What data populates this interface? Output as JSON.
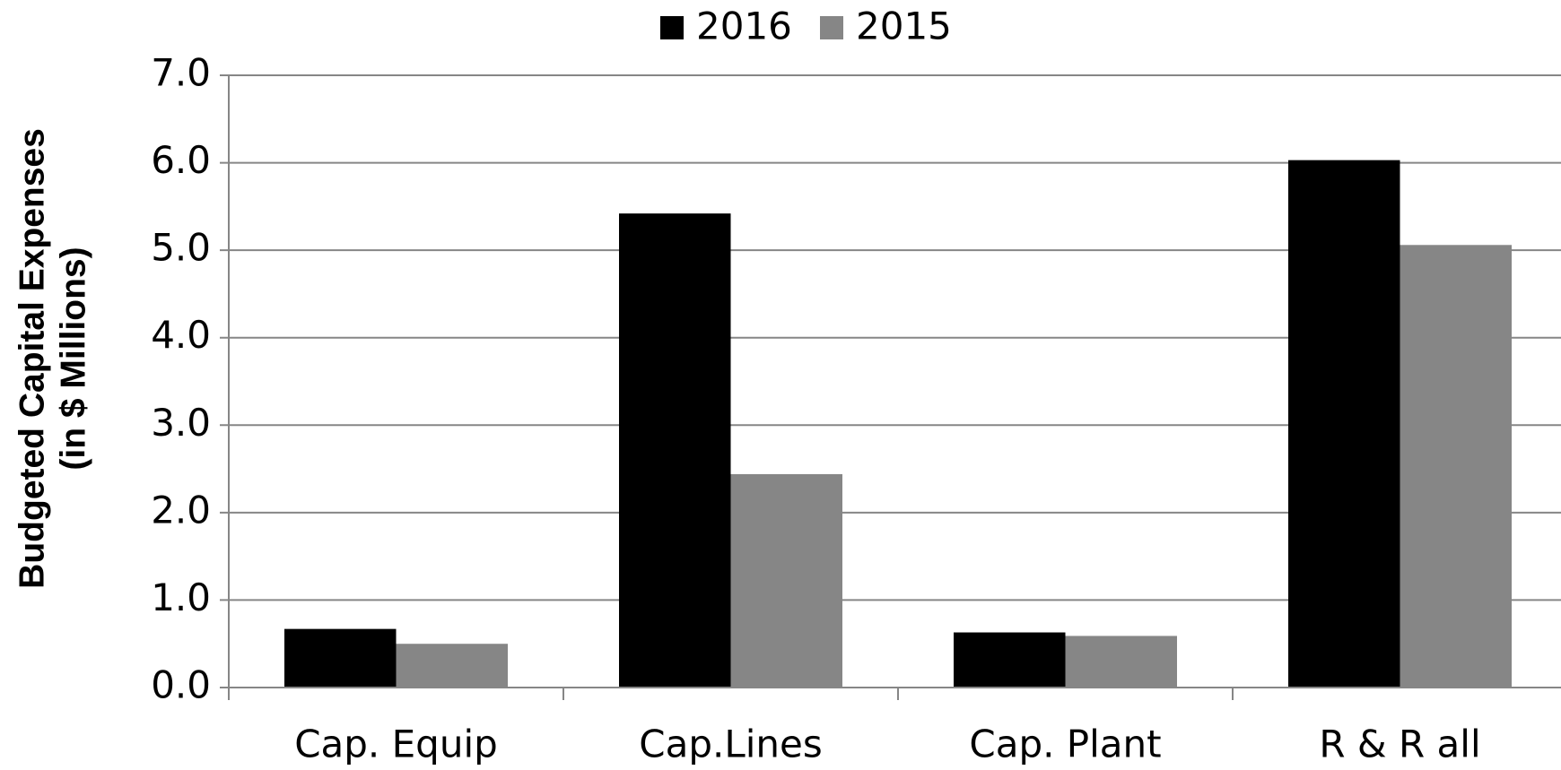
{
  "chart_data": {
    "type": "bar",
    "y_axis_label": [
      "Budgeted Capital Expenses",
      "(in $ Millions)"
    ],
    "categories": [
      "Cap. Equip",
      "Cap.Lines",
      "Cap. Plant",
      "R & R all"
    ],
    "series": [
      {
        "name": "2016",
        "color": "#000000",
        "values": [
          0.67,
          5.42,
          0.63,
          6.03
        ]
      },
      {
        "name": "2015",
        "color": "#868686",
        "values": [
          0.5,
          2.44,
          0.59,
          5.06
        ]
      }
    ],
    "ylim": [
      0,
      7
    ],
    "yticks": [
      {
        "value": 0,
        "label": "0.0"
      },
      {
        "value": 1,
        "label": "1.0"
      },
      {
        "value": 2,
        "label": "2.0"
      },
      {
        "value": 3,
        "label": "3.0"
      },
      {
        "value": 4,
        "label": "4.0"
      },
      {
        "value": 5,
        "label": "5.0"
      },
      {
        "value": 6,
        "label": "6.0"
      },
      {
        "value": 7,
        "label": "7.0"
      }
    ],
    "grid": true,
    "legend": "top"
  }
}
